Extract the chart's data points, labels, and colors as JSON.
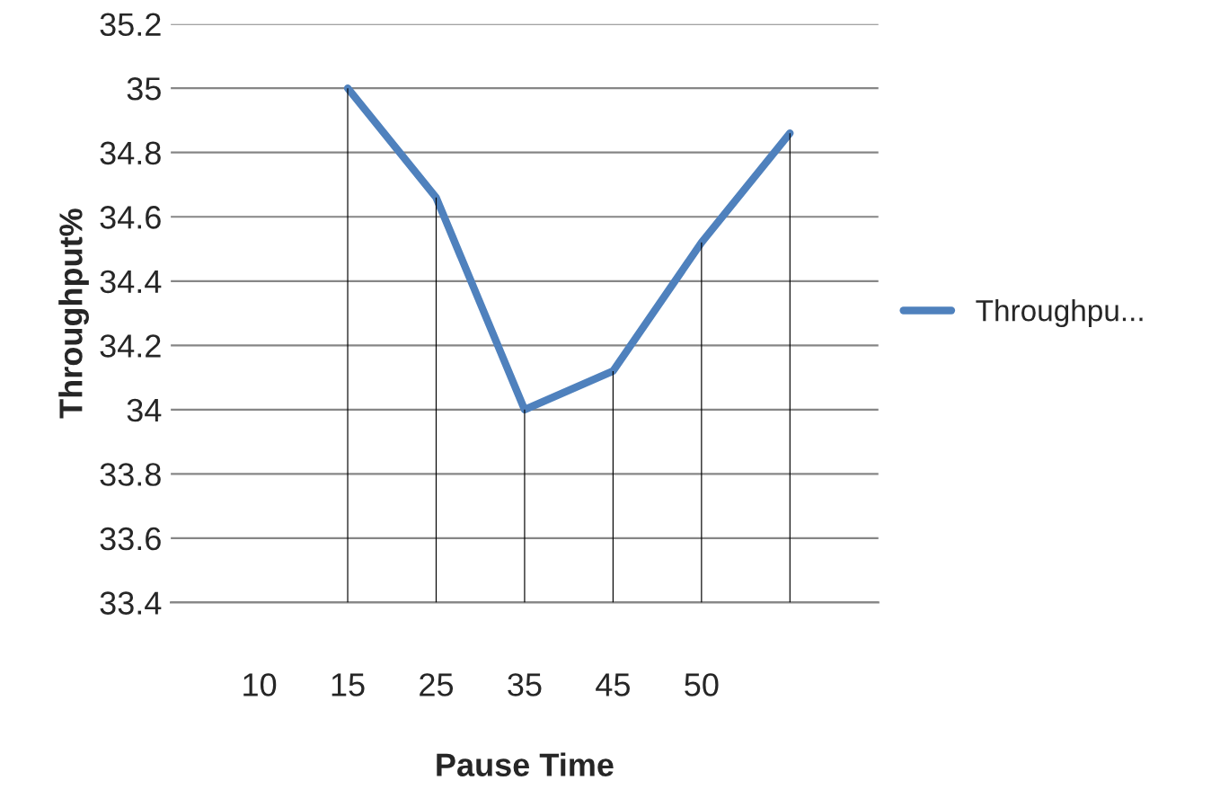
{
  "chart_data": {
    "type": "line",
    "xlabel": "Pause Time",
    "ylabel": "Throughput%",
    "categories": [
      "10",
      "15",
      "25",
      "35",
      "45",
      "50",
      null
    ],
    "series": [
      {
        "type": "bar",
        "color": "#000000",
        "values": [
          null,
          35.0,
          34.66,
          34.0,
          34.12,
          34.52,
          34.86
        ]
      },
      {
        "name": "Throughpu...",
        "color": "#4f81bd",
        "values": [
          null,
          35.0,
          34.66,
          34.0,
          34.12,
          34.52,
          34.86
        ]
      }
    ],
    "ylim": [
      33.4,
      35.2
    ],
    "yticks": [
      33.4,
      33.6,
      33.8,
      34,
      34.2,
      34.4,
      34.6,
      34.8,
      35,
      35.2
    ],
    "grid": "y",
    "legend": "right",
    "marker": "none",
    "line_style": "solid"
  }
}
